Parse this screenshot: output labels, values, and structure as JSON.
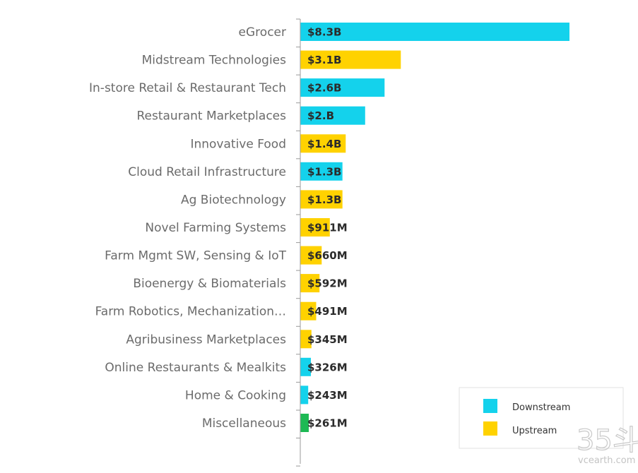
{
  "chart_data": {
    "type": "bar",
    "orientation": "horizontal",
    "categories": [
      "eGrocer",
      "Midstream Technologies",
      "In-store Retail & Restaurant Tech",
      "Restaurant Marketplaces",
      "Innovative Food",
      "Cloud Retail Infrastructure",
      "Ag Biotechnology",
      "Novel Farming Systems",
      "Farm Mgmt SW, Sensing & IoT",
      "Bioenergy & Biomaterials",
      "Farm Robotics, Mechanization…",
      "Agribusiness Marketplaces",
      "Online Restaurants & Mealkits",
      "Home & Cooking",
      "Miscellaneous"
    ],
    "values": [
      8300,
      3100,
      2600,
      2000,
      1400,
      1300,
      1300,
      911,
      660,
      592,
      491,
      345,
      326,
      243,
      261
    ],
    "value_unit": "$M",
    "data_labels": [
      "$8.3B",
      "$3.1B",
      "$2.6B",
      "$2.B",
      "$1.4B",
      "$1.3B",
      "$1.3B",
      "$911M",
      "$660M",
      "$592M",
      "$491M",
      "$345M",
      "$326M",
      "$243M",
      "$261M"
    ],
    "groups": [
      "Downstream",
      "Upstream",
      "Downstream",
      "Downstream",
      "Upstream",
      "Downstream",
      "Upstream",
      "Upstream",
      "Upstream",
      "Upstream",
      "Upstream",
      "Upstream",
      "Downstream",
      "Downstream",
      "Other"
    ],
    "group_colors": {
      "Downstream": "#14d2ec",
      "Upstream": "#ffd200",
      "Other": "#1db954"
    },
    "legend": {
      "placement": "bottom-right",
      "entries": [
        {
          "name": "Downstream",
          "color": "#14d2ec"
        },
        {
          "name": "Upstream",
          "color": "#ffd200"
        }
      ]
    },
    "xlim": [
      0,
      8300
    ],
    "title": "",
    "xlabel": "",
    "ylabel": "",
    "grid": false
  },
  "watermark": {
    "mark": "35斗",
    "site": "vcearth.com"
  }
}
